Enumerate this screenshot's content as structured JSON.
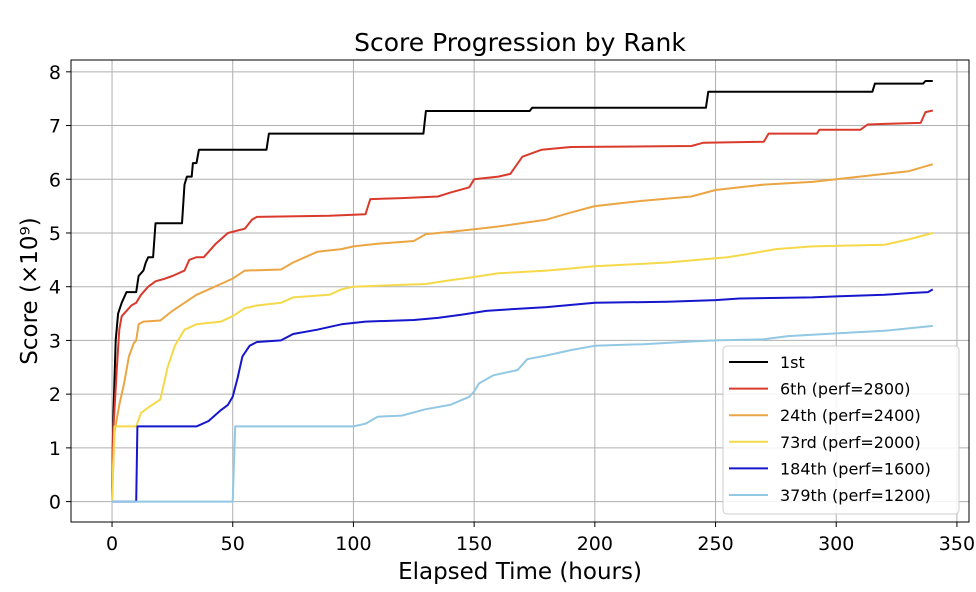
{
  "chart_data": {
    "type": "line",
    "title": "Score Progression by Rank",
    "xlabel": "Elapsed Time (hours)",
    "ylabel": "Score (×10⁹)",
    "xlim": [
      -17,
      355
    ],
    "ylim": [
      -0.38,
      8.22
    ],
    "xticks": [
      0,
      50,
      100,
      150,
      200,
      250,
      300,
      350
    ],
    "yticks": [
      0,
      1,
      2,
      3,
      4,
      5,
      6,
      7,
      8
    ],
    "xtick_labels": [
      "0",
      "50",
      "100",
      "150",
      "200",
      "250",
      "300",
      "350"
    ],
    "ytick_labels": [
      "0",
      "1",
      "2",
      "3",
      "4",
      "5",
      "6",
      "7",
      "8"
    ],
    "grid": true,
    "legend_position": "lower-right",
    "series": [
      {
        "name": "1st",
        "color": "#000000",
        "points": [
          [
            0,
            0.02
          ],
          [
            0.5,
            1.5
          ],
          [
            1.5,
            3.0
          ],
          [
            2.5,
            3.5
          ],
          [
            4,
            3.7
          ],
          [
            6,
            3.9
          ],
          [
            10,
            3.9
          ],
          [
            11,
            4.2
          ],
          [
            13,
            4.3
          ],
          [
            14,
            4.45
          ],
          [
            15,
            4.55
          ],
          [
            17,
            4.55
          ],
          [
            18,
            5.18
          ],
          [
            29,
            5.18
          ],
          [
            30,
            5.9
          ],
          [
            31,
            6.05
          ],
          [
            33,
            6.05
          ],
          [
            33.5,
            6.3
          ],
          [
            35,
            6.3
          ],
          [
            36,
            6.55
          ],
          [
            64,
            6.55
          ],
          [
            65,
            6.85
          ],
          [
            129,
            6.85
          ],
          [
            130,
            7.27
          ],
          [
            173,
            7.27
          ],
          [
            174,
            7.33
          ],
          [
            246,
            7.33
          ],
          [
            247,
            7.63
          ],
          [
            315,
            7.63
          ],
          [
            316,
            7.78
          ],
          [
            336,
            7.78
          ],
          [
            337,
            7.83
          ],
          [
            340,
            7.83
          ]
        ]
      },
      {
        "name": "6th (perf=2800)",
        "color": "#d93a2b",
        "points": [
          [
            0,
            0.02
          ],
          [
            0.5,
            1.3
          ],
          [
            2,
            2.5
          ],
          [
            3,
            3.2
          ],
          [
            4,
            3.45
          ],
          [
            6,
            3.55
          ],
          [
            8,
            3.65
          ],
          [
            10,
            3.7
          ],
          [
            12,
            3.85
          ],
          [
            15,
            4.0
          ],
          [
            18,
            4.1
          ],
          [
            22,
            4.15
          ],
          [
            25,
            4.2
          ],
          [
            30,
            4.3
          ],
          [
            32,
            4.5
          ],
          [
            35,
            4.55
          ],
          [
            38,
            4.55
          ],
          [
            40,
            4.65
          ],
          [
            43,
            4.8
          ],
          [
            48,
            5.0
          ],
          [
            55,
            5.08
          ],
          [
            58,
            5.25
          ],
          [
            60,
            5.3
          ],
          [
            90,
            5.32
          ],
          [
            105,
            5.35
          ],
          [
            107,
            5.63
          ],
          [
            120,
            5.65
          ],
          [
            135,
            5.68
          ],
          [
            140,
            5.75
          ],
          [
            148,
            5.85
          ],
          [
            150,
            6.0
          ],
          [
            160,
            6.05
          ],
          [
            165,
            6.1
          ],
          [
            170,
            6.42
          ],
          [
            178,
            6.55
          ],
          [
            190,
            6.6
          ],
          [
            240,
            6.62
          ],
          [
            245,
            6.68
          ],
          [
            270,
            6.7
          ],
          [
            272,
            6.85
          ],
          [
            292,
            6.85
          ],
          [
            293,
            6.92
          ],
          [
            310,
            6.92
          ],
          [
            313,
            7.02
          ],
          [
            320,
            7.03
          ],
          [
            335,
            7.05
          ],
          [
            337,
            7.25
          ],
          [
            340,
            7.28
          ]
        ]
      },
      {
        "name": "24th (perf=2400)",
        "color": "#eba543",
        "points": [
          [
            0,
            0.02
          ],
          [
            1,
            1.3
          ],
          [
            3,
            1.8
          ],
          [
            5,
            2.2
          ],
          [
            7,
            2.7
          ],
          [
            9,
            2.95
          ],
          [
            10,
            3.0
          ],
          [
            11,
            3.3
          ],
          [
            13,
            3.35
          ],
          [
            20,
            3.37
          ],
          [
            25,
            3.55
          ],
          [
            30,
            3.7
          ],
          [
            35,
            3.85
          ],
          [
            40,
            3.95
          ],
          [
            45,
            4.05
          ],
          [
            50,
            4.15
          ],
          [
            55,
            4.3
          ],
          [
            70,
            4.32
          ],
          [
            75,
            4.45
          ],
          [
            80,
            4.55
          ],
          [
            85,
            4.65
          ],
          [
            95,
            4.7
          ],
          [
            100,
            4.75
          ],
          [
            110,
            4.8
          ],
          [
            125,
            4.85
          ],
          [
            130,
            4.98
          ],
          [
            140,
            5.02
          ],
          [
            150,
            5.07
          ],
          [
            160,
            5.12
          ],
          [
            180,
            5.25
          ],
          [
            190,
            5.38
          ],
          [
            200,
            5.5
          ],
          [
            220,
            5.6
          ],
          [
            240,
            5.68
          ],
          [
            250,
            5.8
          ],
          [
            260,
            5.85
          ],
          [
            270,
            5.9
          ],
          [
            290,
            5.95
          ],
          [
            300,
            6.0
          ],
          [
            320,
            6.1
          ],
          [
            330,
            6.15
          ],
          [
            340,
            6.28
          ]
        ]
      },
      {
        "name": "73rd (perf=2000)",
        "color": "#f5d94a",
        "points": [
          [
            0,
            0.02
          ],
          [
            1,
            1.4
          ],
          [
            10,
            1.4
          ],
          [
            12,
            1.65
          ],
          [
            15,
            1.75
          ],
          [
            20,
            1.9
          ],
          [
            23,
            2.5
          ],
          [
            26,
            2.9
          ],
          [
            30,
            3.2
          ],
          [
            35,
            3.3
          ],
          [
            45,
            3.35
          ],
          [
            50,
            3.45
          ],
          [
            55,
            3.6
          ],
          [
            60,
            3.65
          ],
          [
            70,
            3.7
          ],
          [
            75,
            3.8
          ],
          [
            90,
            3.85
          ],
          [
            95,
            3.95
          ],
          [
            100,
            4.0
          ],
          [
            130,
            4.05
          ],
          [
            140,
            4.12
          ],
          [
            150,
            4.18
          ],
          [
            160,
            4.25
          ],
          [
            180,
            4.3
          ],
          [
            200,
            4.38
          ],
          [
            230,
            4.45
          ],
          [
            255,
            4.55
          ],
          [
            265,
            4.62
          ],
          [
            275,
            4.7
          ],
          [
            290,
            4.75
          ],
          [
            320,
            4.78
          ],
          [
            330,
            4.88
          ],
          [
            340,
            5.0
          ]
        ]
      },
      {
        "name": "184th (perf=1600)",
        "color": "#1616cc",
        "points": [
          [
            0,
            0.0
          ],
          [
            10,
            0.0
          ],
          [
            10.5,
            1.4
          ],
          [
            35,
            1.4
          ],
          [
            40,
            1.5
          ],
          [
            45,
            1.7
          ],
          [
            48,
            1.8
          ],
          [
            50,
            1.95
          ],
          [
            52,
            2.3
          ],
          [
            54,
            2.7
          ],
          [
            57,
            2.9
          ],
          [
            60,
            2.97
          ],
          [
            70,
            3.0
          ],
          [
            75,
            3.12
          ],
          [
            85,
            3.2
          ],
          [
            95,
            3.3
          ],
          [
            105,
            3.35
          ],
          [
            125,
            3.38
          ],
          [
            135,
            3.42
          ],
          [
            145,
            3.48
          ],
          [
            155,
            3.55
          ],
          [
            165,
            3.58
          ],
          [
            180,
            3.62
          ],
          [
            200,
            3.7
          ],
          [
            230,
            3.72
          ],
          [
            250,
            3.75
          ],
          [
            260,
            3.78
          ],
          [
            290,
            3.8
          ],
          [
            300,
            3.82
          ],
          [
            320,
            3.85
          ],
          [
            330,
            3.88
          ],
          [
            338,
            3.9
          ],
          [
            340,
            3.95
          ]
        ]
      },
      {
        "name": "379th (perf=1200)",
        "color": "#92c8e3",
        "points": [
          [
            0,
            0.0
          ],
          [
            50,
            0.0
          ],
          [
            51,
            1.4
          ],
          [
            100,
            1.4
          ],
          [
            105,
            1.45
          ],
          [
            110,
            1.58
          ],
          [
            120,
            1.6
          ],
          [
            130,
            1.72
          ],
          [
            140,
            1.8
          ],
          [
            148,
            1.95
          ],
          [
            150,
            2.05
          ],
          [
            152,
            2.2
          ],
          [
            158,
            2.35
          ],
          [
            168,
            2.45
          ],
          [
            172,
            2.65
          ],
          [
            180,
            2.72
          ],
          [
            190,
            2.82
          ],
          [
            200,
            2.9
          ],
          [
            220,
            2.93
          ],
          [
            240,
            2.98
          ],
          [
            250,
            3.0
          ],
          [
            270,
            3.02
          ],
          [
            280,
            3.08
          ],
          [
            300,
            3.13
          ],
          [
            320,
            3.18
          ],
          [
            340,
            3.27
          ]
        ]
      }
    ]
  }
}
